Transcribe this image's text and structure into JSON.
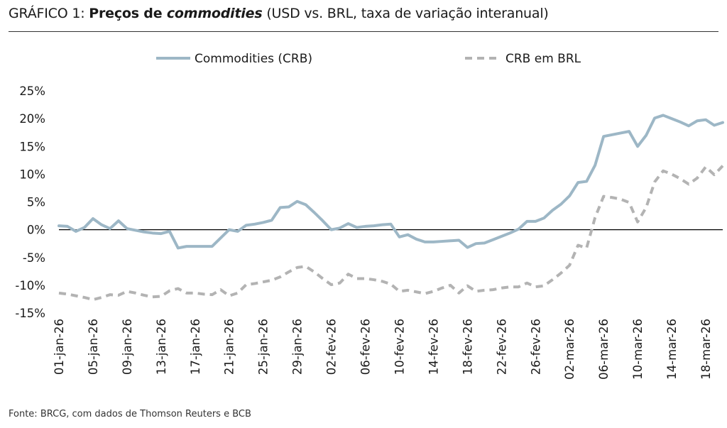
{
  "title": {
    "prefix": "GRÁFICO 1: ",
    "bold": "Preços de ",
    "bold_italic": "commodities",
    "suffix": " (USD vs. BRL, taxa de variação interanual)"
  },
  "source": "Fonte: BRCG, com dados de Thomson Reuters e BCB",
  "chart_data": {
    "type": "line",
    "title": "GRÁFICO 1: Preços de commodities (USD vs. BRL, taxa de variação interanual)",
    "xlabel": "",
    "ylabel": "",
    "ylim": [
      -15,
      25
    ],
    "yticks": [
      -15,
      -10,
      -5,
      0,
      5,
      10,
      15,
      20,
      25
    ],
    "ytick_labels": [
      "-15%",
      "-10%",
      "-5%",
      "0%",
      "5%",
      "10%",
      "15%",
      "20%",
      "25%"
    ],
    "xtick_labels": [
      "01-jan-26",
      "05-jan-26",
      "09-jan-26",
      "13-jan-26",
      "17-jan-26",
      "21-jan-26",
      "25-jan-26",
      "29-jan-26",
      "02-fev-26",
      "06-fev-26",
      "10-fev-26",
      "14-fev-26",
      "18-fev-26",
      "22-fev-26",
      "26-fev-26",
      "02-mar-26",
      "06-mar-26",
      "10-mar-26",
      "14-mar-26",
      "18-mar-26"
    ],
    "legend": "top-center",
    "colors": {
      "crb": "#9db7c6",
      "crb_brl": "#b3b3b3"
    },
    "series": [
      {
        "name": "Commodities (CRB)",
        "style": "solid",
        "points": [
          [
            "01-jan-26",
            0.7
          ],
          [
            "02-jan-26",
            0.6
          ],
          [
            "03-jan-26",
            -0.3
          ],
          [
            "04-jan-26",
            0.4
          ],
          [
            "05-jan-26",
            2.0
          ],
          [
            "06-jan-26",
            0.9
          ],
          [
            "07-jan-26",
            0.2
          ],
          [
            "08-jan-26",
            1.6
          ],
          [
            "09-jan-26",
            0.2
          ],
          [
            "10-jan-26",
            -0.1
          ],
          [
            "11-jan-26",
            -0.4
          ],
          [
            "12-jan-26",
            -0.6
          ],
          [
            "13-jan-26",
            -0.7
          ],
          [
            "14-jan-26",
            -0.3
          ],
          [
            "15-jan-26",
            -3.3
          ],
          [
            "16-jan-26",
            -3.0
          ],
          [
            "17-jan-26",
            -3.0
          ],
          [
            "18-jan-26",
            -3.0
          ],
          [
            "19-jan-26",
            -3.0
          ],
          [
            "20-jan-26",
            -1.5
          ],
          [
            "21-jan-26",
            0.0
          ],
          [
            "22-jan-26",
            -0.3
          ],
          [
            "23-jan-26",
            0.8
          ],
          [
            "24-jan-26",
            1.0
          ],
          [
            "25-jan-26",
            1.3
          ],
          [
            "26-jan-26",
            1.7
          ],
          [
            "27-jan-26",
            4.0
          ],
          [
            "28-jan-26",
            4.1
          ],
          [
            "29-jan-26",
            5.1
          ],
          [
            "30-jan-26",
            4.5
          ],
          [
            "31-jan-26",
            3.1
          ],
          [
            "01-fev-26",
            1.6
          ],
          [
            "02-fev-26",
            0.0
          ],
          [
            "03-fev-26",
            0.3
          ],
          [
            "04-fev-26",
            1.1
          ],
          [
            "05-fev-26",
            0.4
          ],
          [
            "06-fev-26",
            0.6
          ],
          [
            "07-fev-26",
            0.7
          ],
          [
            "08-fev-26",
            0.9
          ],
          [
            "09-fev-26",
            1.0
          ],
          [
            "10-fev-26",
            -1.3
          ],
          [
            "11-fev-26",
            -0.9
          ],
          [
            "12-fev-26",
            -1.7
          ],
          [
            "13-fev-26",
            -2.2
          ],
          [
            "14-fev-26",
            -2.2
          ],
          [
            "15-fev-26",
            -2.1
          ],
          [
            "16-fev-26",
            -2.0
          ],
          [
            "17-fev-26",
            -1.9
          ],
          [
            "18-fev-26",
            -3.2
          ],
          [
            "19-fev-26",
            -2.5
          ],
          [
            "20-fev-26",
            -2.4
          ],
          [
            "21-fev-26",
            -1.8
          ],
          [
            "22-fev-26",
            -1.2
          ],
          [
            "23-fev-26",
            -0.6
          ],
          [
            "24-fev-26",
            0.1
          ],
          [
            "25-fev-26",
            1.5
          ],
          [
            "26-fev-26",
            1.5
          ],
          [
            "27-fev-26",
            2.1
          ],
          [
            "28-fev-26",
            3.5
          ],
          [
            "01-mar-26",
            4.6
          ],
          [
            "02-mar-26",
            6.1
          ],
          [
            "03-mar-26",
            8.5
          ],
          [
            "04-mar-26",
            8.7
          ],
          [
            "05-mar-26",
            11.6
          ],
          [
            "06-mar-26",
            16.8
          ],
          [
            "07-mar-26",
            17.1
          ],
          [
            "08-mar-26",
            17.4
          ],
          [
            "09-mar-26",
            17.7
          ],
          [
            "10-mar-26",
            15.0
          ],
          [
            "11-mar-26",
            17.0
          ],
          [
            "12-mar-26",
            20.1
          ],
          [
            "13-mar-26",
            20.6
          ],
          [
            "14-mar-26",
            20.0
          ],
          [
            "15-mar-26",
            19.4
          ],
          [
            "16-mar-26",
            18.7
          ],
          [
            "17-mar-26",
            19.6
          ],
          [
            "18-mar-26",
            19.8
          ],
          [
            "19-mar-26",
            18.8
          ],
          [
            "20-mar-26",
            19.3
          ]
        ]
      },
      {
        "name": "CRB em BRL",
        "style": "dashed",
        "points": [
          [
            "01-jan-26",
            -11.4
          ],
          [
            "02-jan-26",
            -11.6
          ],
          [
            "03-jan-26",
            -11.9
          ],
          [
            "04-jan-26",
            -12.2
          ],
          [
            "05-jan-26",
            -12.6
          ],
          [
            "06-jan-26",
            -12.2
          ],
          [
            "07-jan-26",
            -11.7
          ],
          [
            "08-jan-26",
            -11.8
          ],
          [
            "09-jan-26",
            -11.1
          ],
          [
            "10-jan-26",
            -11.4
          ],
          [
            "11-jan-26",
            -11.8
          ],
          [
            "12-jan-26",
            -12.1
          ],
          [
            "13-jan-26",
            -12.0
          ],
          [
            "14-jan-26",
            -11.0
          ],
          [
            "15-jan-26",
            -10.6
          ],
          [
            "16-jan-26",
            -11.4
          ],
          [
            "17-jan-26",
            -11.4
          ],
          [
            "18-jan-26",
            -11.6
          ],
          [
            "19-jan-26",
            -11.7
          ],
          [
            "20-jan-26",
            -10.8
          ],
          [
            "21-jan-26",
            -11.9
          ],
          [
            "22-jan-26",
            -11.4
          ],
          [
            "23-jan-26",
            -9.9
          ],
          [
            "24-jan-26",
            -9.7
          ],
          [
            "25-jan-26",
            -9.4
          ],
          [
            "26-jan-26",
            -9.1
          ],
          [
            "27-jan-26",
            -8.5
          ],
          [
            "28-jan-26",
            -7.6
          ],
          [
            "29-jan-26",
            -6.8
          ],
          [
            "30-jan-26",
            -6.6
          ],
          [
            "31-jan-26",
            -7.6
          ],
          [
            "01-fev-26",
            -8.8
          ],
          [
            "02-fev-26",
            -9.9
          ],
          [
            "03-fev-26",
            -9.6
          ],
          [
            "04-fev-26",
            -8.0
          ],
          [
            "05-fev-26",
            -8.8
          ],
          [
            "06-fev-26",
            -8.8
          ],
          [
            "07-fev-26",
            -9.0
          ],
          [
            "08-fev-26",
            -9.3
          ],
          [
            "09-fev-26",
            -9.8
          ],
          [
            "10-fev-26",
            -11.1
          ],
          [
            "11-fev-26",
            -10.9
          ],
          [
            "12-fev-26",
            -11.2
          ],
          [
            "13-fev-26",
            -11.5
          ],
          [
            "14-fev-26",
            -11.1
          ],
          [
            "15-fev-26",
            -10.5
          ],
          [
            "16-fev-26",
            -10.0
          ],
          [
            "17-fev-26",
            -11.4
          ],
          [
            "18-fev-26",
            -10.1
          ],
          [
            "19-fev-26",
            -11.1
          ],
          [
            "20-fev-26",
            -10.9
          ],
          [
            "21-fev-26",
            -10.8
          ],
          [
            "22-fev-26",
            -10.5
          ],
          [
            "23-fev-26",
            -10.3
          ],
          [
            "24-fev-26",
            -10.3
          ],
          [
            "25-fev-26",
            -9.6
          ],
          [
            "26-fev-26",
            -10.3
          ],
          [
            "27-fev-26",
            -10.1
          ],
          [
            "28-fev-26",
            -9.0
          ],
          [
            "01-mar-26",
            -7.8
          ],
          [
            "02-mar-26",
            -6.4
          ],
          [
            "03-mar-26",
            -2.8
          ],
          [
            "04-mar-26",
            -3.3
          ],
          [
            "05-mar-26",
            2.2
          ],
          [
            "06-mar-26",
            6.0
          ],
          [
            "07-mar-26",
            5.8
          ],
          [
            "08-mar-26",
            5.5
          ],
          [
            "09-mar-26",
            4.9
          ],
          [
            "10-mar-26",
            1.4
          ],
          [
            "11-mar-26",
            4.0
          ],
          [
            "12-mar-26",
            8.6
          ],
          [
            "13-mar-26",
            10.6
          ],
          [
            "14-mar-26",
            10.0
          ],
          [
            "15-mar-26",
            9.2
          ],
          [
            "16-mar-26",
            8.2
          ],
          [
            "17-mar-26",
            9.3
          ],
          [
            "18-mar-26",
            11.3
          ],
          [
            "19-mar-26",
            9.9
          ],
          [
            "20-mar-26",
            11.5
          ]
        ]
      }
    ]
  }
}
